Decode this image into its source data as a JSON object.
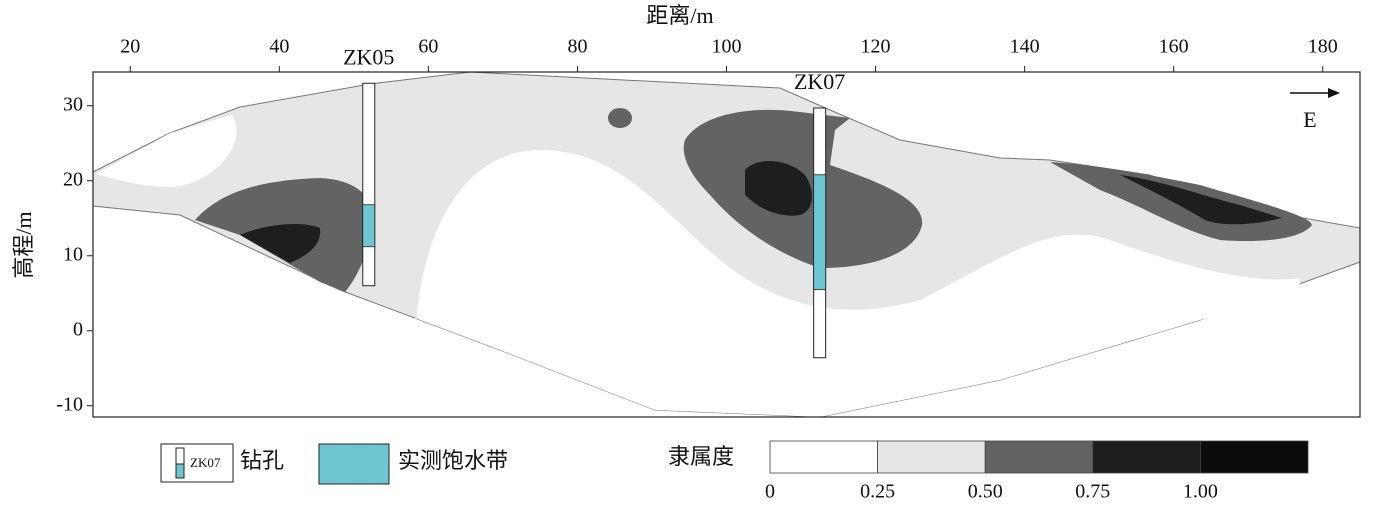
{
  "chart_data": {
    "type": "section",
    "xlabel": "距离/m",
    "ylabel": "高程/m",
    "xlim": [
      15,
      185
    ],
    "xticks": [
      20,
      40,
      60,
      80,
      100,
      120,
      140,
      160,
      180
    ],
    "ylim": [
      -11.5,
      34.5
    ],
    "yticks": [
      -10,
      0,
      10,
      20,
      30
    ],
    "direction": "E",
    "boreholes": [
      {
        "name": "ZK05",
        "x": 52,
        "top": 33,
        "bottom": 6,
        "saturated": [
          16.8,
          11.2
        ]
      },
      {
        "name": "ZK07",
        "x": 112.5,
        "top": 29.7,
        "bottom": -3.6,
        "saturated": [
          20.8,
          5.5
        ]
      }
    ],
    "saturated_color": "#6ec6d2",
    "legend": {
      "borehole_icon": "ZK07",
      "borehole": "钻孔",
      "saturated": "实测饱水带"
    },
    "colorbar": {
      "label": "隶属度",
      "ticks": [
        0,
        0.25,
        {
          "value": 0.5,
          "label": "0.50"
        },
        0.75,
        {
          "value": 1,
          "label": "1.00"
        }
      ],
      "colors": [
        "#ffffff",
        "#e6e6e6",
        "#636363",
        "#1e1e1e",
        "#0b0b0b"
      ]
    }
  }
}
